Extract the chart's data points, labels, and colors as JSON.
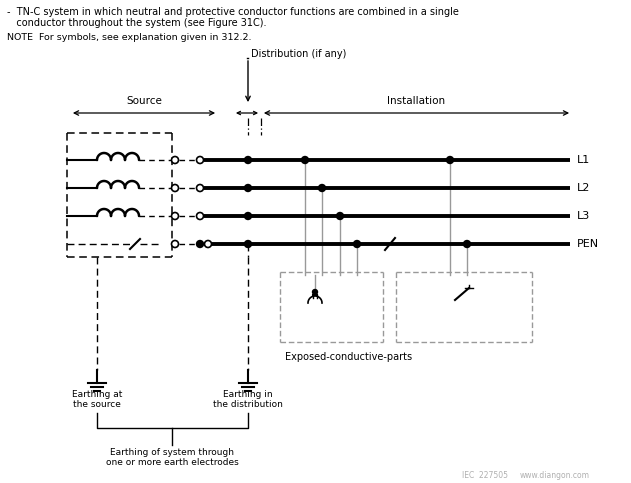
{
  "title_line1": "-  TN-C system in which neutral and protective conductor functions are combined in a single",
  "title_line2": "   conductor throughout the system (see Figure 31C).",
  "note_text": "NOTE  For symbols, see explanation given in 312.2.",
  "dist_label": "Distribution (if any)",
  "source_label": "Source",
  "install_label": "Installation",
  "labels_right": [
    "L1",
    "L2",
    "L3",
    "PEN"
  ],
  "exposed_label": "Exposed-conductive-parts",
  "earth_source_label": "Earthing at\nthe source",
  "earth_dist_label": "Earthing in\nthe distribution",
  "earth_system_label": "Earthing of system through\none or more earth electrodes",
  "watermark": "www.diangon.com",
  "iec_label": "IEC  227505",
  "bg_color": "#ffffff",
  "lc": "#000000",
  "gc": "#999999"
}
